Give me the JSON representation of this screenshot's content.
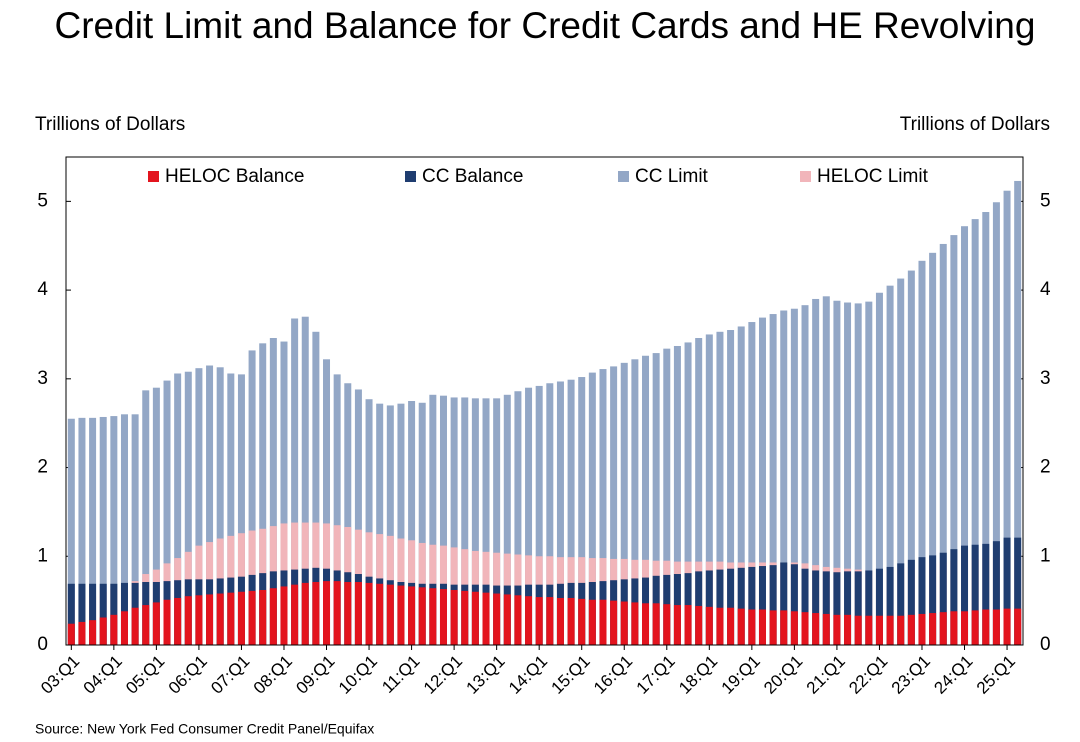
{
  "chart_data": {
    "type": "bar",
    "title": "Credit Limit and Balance for Credit Cards and HE Revolving",
    "y_label": "Trillions of Dollars",
    "y2_label": "Trillions of Dollars",
    "source": "Source: New York Fed Consumer Credit Panel/Equifax",
    "categories": [
      "03:Q1",
      null,
      null,
      null,
      "04:Q1",
      null,
      null,
      null,
      "05:Q1",
      null,
      null,
      null,
      "06:Q1",
      null,
      null,
      null,
      "07:Q1",
      null,
      null,
      null,
      "08:Q1",
      null,
      null,
      null,
      "09:Q1",
      null,
      null,
      null,
      "10:Q1",
      null,
      null,
      null,
      "11:Q1",
      null,
      null,
      null,
      "12:Q1",
      null,
      null,
      null,
      "13:Q1",
      null,
      null,
      null,
      "14:Q1",
      null,
      null,
      null,
      "15:Q1",
      null,
      null,
      null,
      "16:Q1",
      null,
      null,
      null,
      "17:Q1",
      null,
      null,
      null,
      "18:Q1",
      null,
      null,
      null,
      "19:Q1",
      null,
      null,
      null,
      "20:Q1",
      null,
      null,
      null,
      "21:Q1",
      null,
      null,
      null,
      "22:Q1",
      null,
      null,
      null,
      "23:Q1",
      null,
      null,
      null,
      "24:Q1",
      null,
      null,
      null,
      "25:Q1",
      null
    ],
    "series": [
      {
        "name": "CC Limit",
        "color": "#93a7c6",
        "values": [
          2.55,
          2.56,
          2.56,
          2.57,
          2.58,
          2.6,
          2.6,
          2.87,
          2.9,
          2.98,
          3.06,
          3.08,
          3.12,
          3.15,
          3.13,
          3.06,
          3.05,
          3.32,
          3.4,
          3.46,
          3.42,
          3.68,
          3.7,
          3.53,
          3.22,
          3.05,
          2.95,
          2.88,
          2.77,
          2.72,
          2.7,
          2.72,
          2.75,
          2.73,
          2.82,
          2.81,
          2.79,
          2.79,
          2.78,
          2.78,
          2.78,
          2.82,
          2.86,
          2.9,
          2.92,
          2.95,
          2.97,
          2.99,
          3.02,
          3.07,
          3.11,
          3.14,
          3.18,
          3.22,
          3.26,
          3.29,
          3.34,
          3.37,
          3.41,
          3.46,
          3.5,
          3.53,
          3.55,
          3.59,
          3.64,
          3.69,
          3.73,
          3.77,
          3.79,
          3.83,
          3.9,
          3.93,
          3.88,
          3.86,
          3.85,
          3.87,
          3.97,
          4.05,
          4.13,
          4.22,
          4.33,
          4.42,
          4.52,
          4.62,
          4.72,
          4.8,
          4.88,
          4.99,
          5.12,
          5.23
        ]
      },
      {
        "name": "HELOC Limit",
        "color": "#f1b5ba",
        "values": [
          0.48,
          0.52,
          0.55,
          0.6,
          0.63,
          0.68,
          0.72,
          0.8,
          0.85,
          0.92,
          0.98,
          1.05,
          1.12,
          1.16,
          1.2,
          1.23,
          1.26,
          1.29,
          1.31,
          1.34,
          1.37,
          1.38,
          1.38,
          1.38,
          1.37,
          1.35,
          1.33,
          1.3,
          1.27,
          1.25,
          1.23,
          1.2,
          1.18,
          1.15,
          1.13,
          1.12,
          1.1,
          1.08,
          1.06,
          1.05,
          1.04,
          1.03,
          1.02,
          1.01,
          1.0,
          1.0,
          0.99,
          0.99,
          0.99,
          0.98,
          0.98,
          0.97,
          0.97,
          0.96,
          0.96,
          0.95,
          0.95,
          0.94,
          0.94,
          0.94,
          0.94,
          0.94,
          0.93,
          0.93,
          0.93,
          0.93,
          0.93,
          0.93,
          0.93,
          0.92,
          0.9,
          0.88,
          0.87,
          0.86,
          0.85,
          0.84,
          0.84,
          0.85,
          0.86,
          0.88,
          0.9,
          0.92,
          0.93,
          0.95,
          0.96,
          0.97,
          0.98,
          0.99,
          1.0,
          1.01
        ]
      },
      {
        "name": "CC Balance",
        "color": "#1f3d70",
        "values": [
          0.69,
          0.69,
          0.69,
          0.69,
          0.69,
          0.7,
          0.7,
          0.71,
          0.71,
          0.72,
          0.73,
          0.74,
          0.74,
          0.74,
          0.75,
          0.76,
          0.77,
          0.79,
          0.81,
          0.83,
          0.84,
          0.85,
          0.86,
          0.87,
          0.86,
          0.84,
          0.82,
          0.8,
          0.77,
          0.75,
          0.73,
          0.71,
          0.7,
          0.69,
          0.69,
          0.69,
          0.68,
          0.68,
          0.68,
          0.68,
          0.67,
          0.67,
          0.67,
          0.68,
          0.68,
          0.68,
          0.69,
          0.7,
          0.7,
          0.71,
          0.72,
          0.73,
          0.74,
          0.75,
          0.76,
          0.78,
          0.79,
          0.8,
          0.81,
          0.83,
          0.84,
          0.85,
          0.86,
          0.87,
          0.88,
          0.89,
          0.9,
          0.93,
          0.91,
          0.86,
          0.84,
          0.83,
          0.82,
          0.83,
          0.83,
          0.84,
          0.86,
          0.88,
          0.92,
          0.96,
          0.99,
          1.01,
          1.04,
          1.08,
          1.12,
          1.13,
          1.14,
          1.17,
          1.21,
          1.21
        ]
      },
      {
        "name": "HELOC Balance",
        "color": "#e3141e",
        "values": [
          0.24,
          0.26,
          0.28,
          0.31,
          0.34,
          0.38,
          0.42,
          0.45,
          0.48,
          0.51,
          0.53,
          0.55,
          0.56,
          0.57,
          0.58,
          0.59,
          0.6,
          0.61,
          0.62,
          0.64,
          0.66,
          0.68,
          0.7,
          0.71,
          0.72,
          0.72,
          0.71,
          0.71,
          0.7,
          0.69,
          0.68,
          0.67,
          0.66,
          0.65,
          0.64,
          0.63,
          0.62,
          0.61,
          0.6,
          0.59,
          0.58,
          0.57,
          0.56,
          0.55,
          0.54,
          0.54,
          0.53,
          0.53,
          0.52,
          0.51,
          0.51,
          0.5,
          0.49,
          0.48,
          0.47,
          0.47,
          0.46,
          0.45,
          0.45,
          0.44,
          0.43,
          0.42,
          0.42,
          0.41,
          0.4,
          0.4,
          0.39,
          0.39,
          0.38,
          0.37,
          0.36,
          0.35,
          0.34,
          0.34,
          0.33,
          0.33,
          0.33,
          0.33,
          0.33,
          0.34,
          0.35,
          0.36,
          0.37,
          0.38,
          0.38,
          0.39,
          0.4,
          0.4,
          0.41,
          0.41
        ]
      }
    ],
    "legend_order": [
      "HELOC Balance",
      "CC Balance",
      "CC Limit",
      "HELOC Limit"
    ],
    "ylim": [
      0,
      5.5
    ],
    "yticks": [
      0,
      1,
      2,
      3,
      4,
      5
    ],
    "y2lim": [
      0,
      5.5
    ],
    "y2ticks": [
      0,
      1,
      2,
      3,
      4,
      5
    ]
  }
}
